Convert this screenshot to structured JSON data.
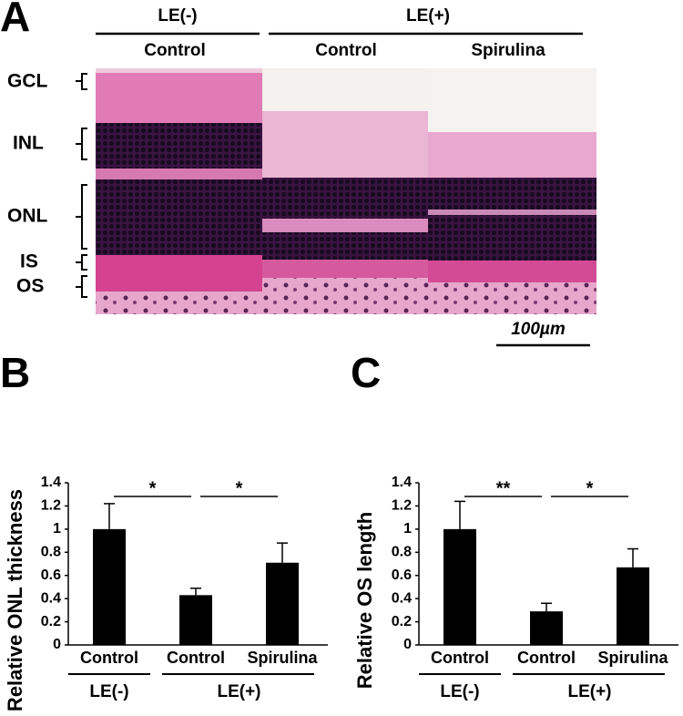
{
  "panel_a": {
    "letter": "A",
    "groups": [
      "LE(-)",
      "LE(+)"
    ],
    "columns": [
      "Control",
      "Control",
      "Spirulina"
    ],
    "layers": [
      "GCL",
      "INL",
      "ONL",
      "IS",
      "OS"
    ],
    "scale_bar": "100µm"
  },
  "chart_data": [
    {
      "type": "bar",
      "panel_label": "B",
      "ylabel": "Relative ONL thickness",
      "categories": [
        "Control",
        "Control",
        "Spirulina"
      ],
      "group_labels": [
        "LE(-)",
        "LE(+)"
      ],
      "values": [
        1.0,
        0.43,
        0.71
      ],
      "errors": [
        0.22,
        0.06,
        0.17
      ],
      "significance": [
        "*",
        "*"
      ],
      "color": "#000000",
      "ylim": [
        0,
        1.4
      ],
      "yticks": [
        0,
        0.2,
        0.4,
        0.6,
        0.8,
        1,
        1.2,
        1.4
      ]
    },
    {
      "type": "bar",
      "panel_label": "C",
      "ylabel": "Relative OS length",
      "categories": [
        "Control",
        "Control",
        "Spirulina"
      ],
      "group_labels": [
        "LE(-)",
        "LE(+)"
      ],
      "values": [
        1.0,
        0.29,
        0.67
      ],
      "errors": [
        0.24,
        0.07,
        0.16
      ],
      "significance": [
        "**",
        "*"
      ],
      "color": "#000000",
      "ylim": [
        0,
        1.4
      ],
      "yticks": [
        0,
        0.2,
        0.4,
        0.6,
        0.8,
        1,
        1.2,
        1.4
      ]
    }
  ]
}
